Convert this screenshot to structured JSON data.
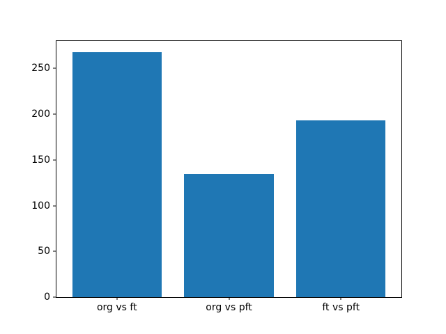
{
  "chart_data": {
    "type": "bar",
    "categories": [
      "org vs ft",
      "org vs pft",
      "ft vs pft"
    ],
    "values": [
      268,
      135,
      193
    ],
    "title": "",
    "xlabel": "",
    "ylabel": "",
    "ylim": [
      0,
      280
    ],
    "xlim": [
      -0.54,
      2.54
    ],
    "yticks": [
      0,
      50,
      100,
      150,
      200,
      250
    ],
    "bar_width_fraction": 0.8,
    "bar_color": "#1f77b4",
    "axis_color": "#000000",
    "background_color": "#ffffff",
    "grid": false,
    "legend": null
  }
}
